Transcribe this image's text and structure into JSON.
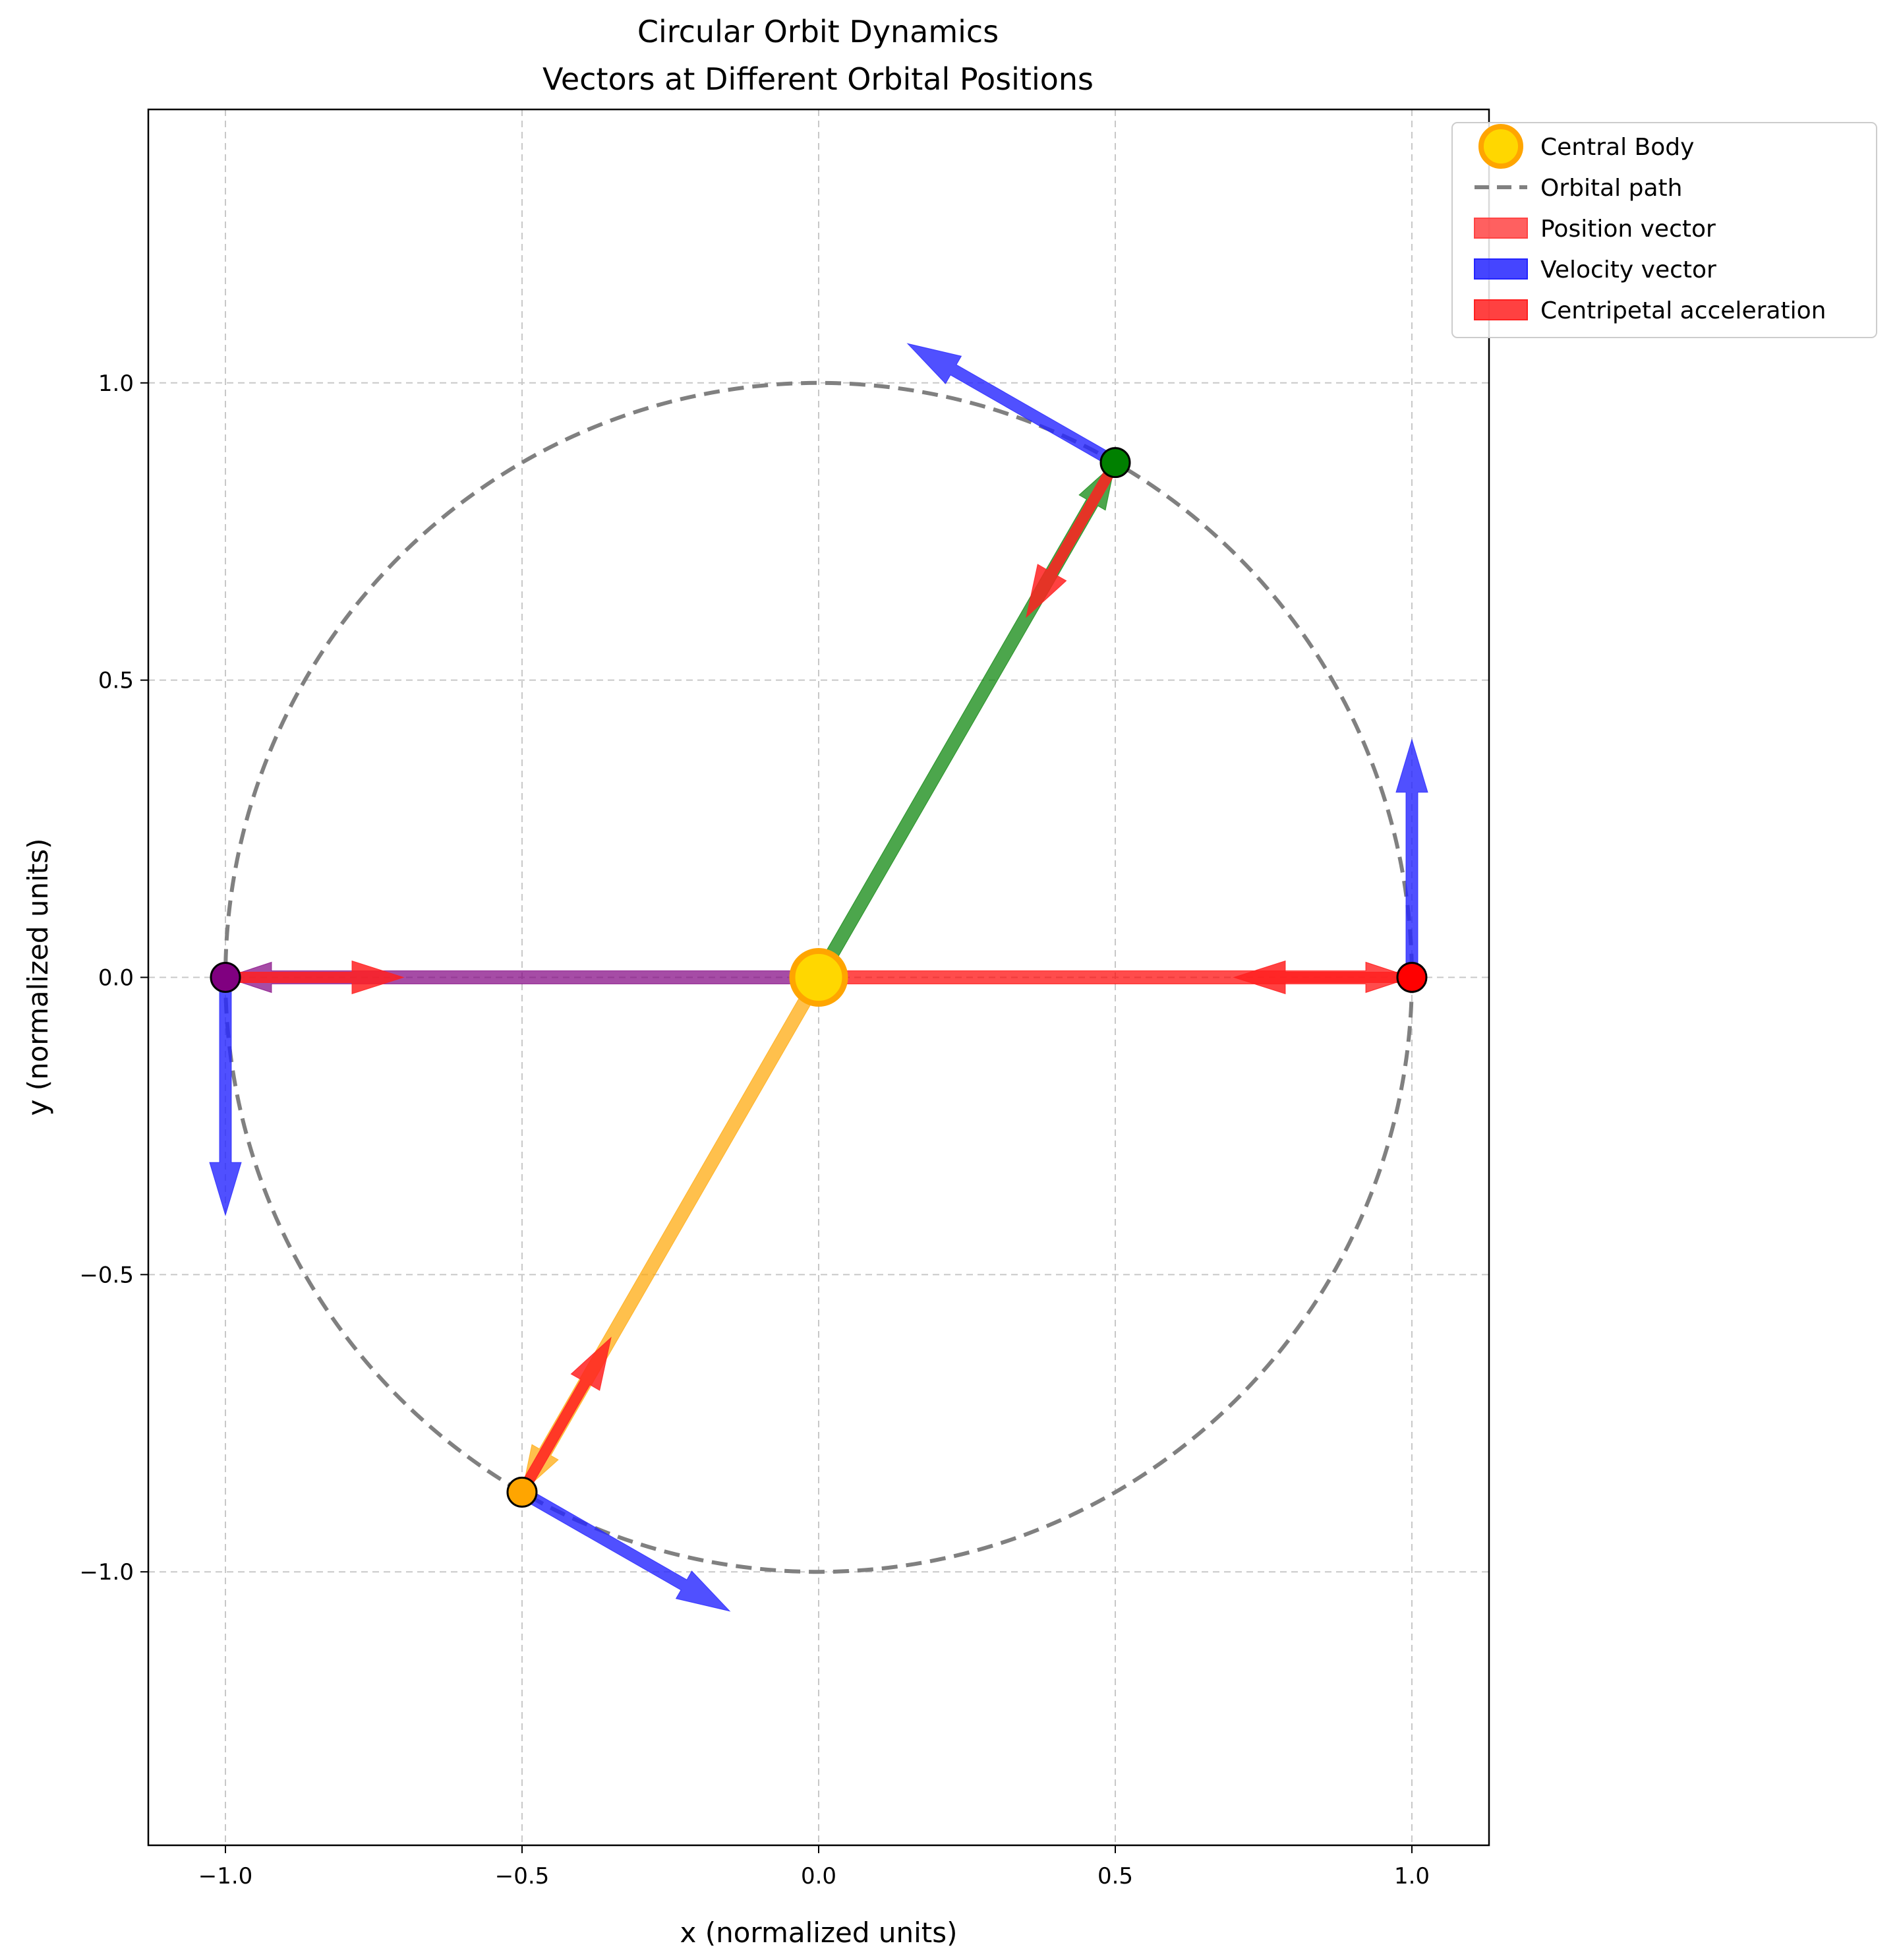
{
  "chart_data": {
    "type": "vector",
    "title": "Circular Orbit Dynamics",
    "subtitle": "Vectors at Different Orbital Positions",
    "xlabel": "x (normalized units)",
    "ylabel": "y (normalized units)",
    "xlim": [
      -1.13,
      1.13
    ],
    "ylim": [
      -1.46,
      1.46
    ],
    "xticks": [
      -1.0,
      -0.5,
      0.0,
      0.5,
      1.0
    ],
    "yticks": [
      -1.0,
      -0.5,
      0.0,
      0.5,
      1.0
    ],
    "xtick_labels": [
      "−1.0",
      "−0.5",
      "0.0",
      "0.5",
      "1.0"
    ],
    "ytick_labels": [
      "−1.0",
      "−0.5",
      "0.0",
      "0.5",
      "1.0"
    ],
    "grid": true,
    "legend_position": "top-right, outside plot",
    "legend": [
      {
        "label": "Central Body",
        "kind": "marker",
        "color": "#FFD700",
        "edge": "#FFA500"
      },
      {
        "label": "Orbital path",
        "kind": "dashed-line",
        "color": "#808080"
      },
      {
        "label": "Position vector",
        "kind": "patch",
        "color": "#FF4444"
      },
      {
        "label": "Velocity vector",
        "kind": "patch",
        "color": "#2424FF"
      },
      {
        "label": "Centripetal acceleration",
        "kind": "patch",
        "color": "#FF2020"
      }
    ],
    "central_body": {
      "x": 0.0,
      "y": 0.0,
      "color": "#FFD700",
      "edge": "#FFA500"
    },
    "orbit": {
      "radius": 1.0,
      "color": "#808080",
      "style": "dashed"
    },
    "positions": [
      {
        "x": 1.0,
        "y": 0.0,
        "color": "#FF0000",
        "velocity": [
          0.0,
          0.4
        ],
        "acceleration": [
          -0.3,
          0.0
        ]
      },
      {
        "x": 0.5,
        "y": 0.866,
        "color": "#008000",
        "velocity": [
          -0.35,
          0.2
        ],
        "acceleration": [
          -0.15,
          -0.26
        ]
      },
      {
        "x": -1.0,
        "y": 0.0,
        "color": "#800080",
        "velocity": [
          0.0,
          -0.4
        ],
        "acceleration": [
          0.3,
          0.0
        ]
      },
      {
        "x": -0.5,
        "y": -0.866,
        "color": "#FFA500",
        "velocity": [
          0.35,
          -0.2
        ],
        "acceleration": [
          0.15,
          0.26
        ]
      }
    ],
    "colors": {
      "position_red": "#FF4444",
      "velocity": "#2424FF",
      "acceleration": "#FF2020",
      "grid": "#C8C8C8",
      "axes": "#000000"
    }
  }
}
